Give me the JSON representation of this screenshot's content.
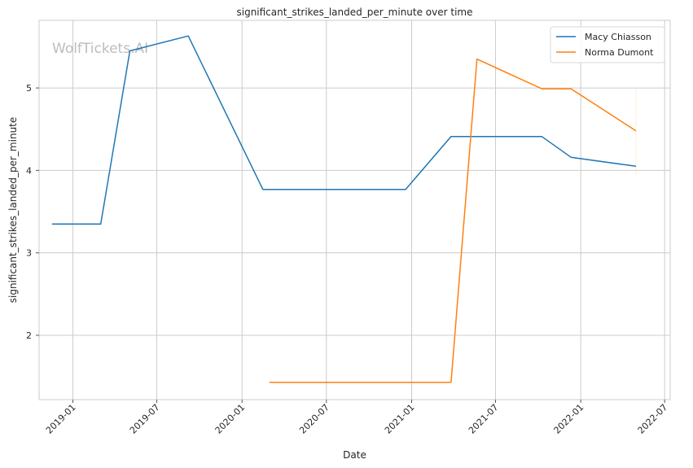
{
  "watermark": "WolfTickets.AI",
  "chart_data": {
    "type": "line",
    "title": "significant_strikes_landed_per_minute over time",
    "xlabel": "Date",
    "ylabel": "significant_strikes_landed_per_minute",
    "x_ticks": [
      "2019-01",
      "2019-07",
      "2020-01",
      "2020-07",
      "2021-01",
      "2021-07",
      "2022-01",
      "2022-07"
    ],
    "y_ticks": [
      2,
      3,
      4,
      5
    ],
    "ylim": [
      1.22,
      5.82
    ],
    "xlim": [
      "2018-10-20",
      "2022-07-13"
    ],
    "grid": true,
    "legend_position": "top-right",
    "series": [
      {
        "name": "Macy Chiasson",
        "color": "#1f77b4",
        "points": [
          {
            "x": "2018-11-17",
            "y": 3.35
          },
          {
            "x": "2019-03-02",
            "y": 3.35
          },
          {
            "x": "2019-05-04",
            "y": 5.45
          },
          {
            "x": "2019-09-07",
            "y": 5.63
          },
          {
            "x": "2020-02-15",
            "y": 3.77
          },
          {
            "x": "2020-12-19",
            "y": 3.77
          },
          {
            "x": "2021-03-27",
            "y": 4.41
          },
          {
            "x": "2021-10-09",
            "y": 4.41
          },
          {
            "x": "2021-12-11",
            "y": 4.16
          },
          {
            "x": "2022-04-30",
            "y": 4.05
          }
        ]
      },
      {
        "name": "Norma Dumont",
        "color": "#ff7f0e",
        "points": [
          {
            "x": "2020-02-29",
            "y": 1.43
          },
          {
            "x": "2021-03-27",
            "y": 1.43
          },
          {
            "x": "2021-05-22",
            "y": 5.35
          },
          {
            "x": "2021-10-09",
            "y": 4.99
          },
          {
            "x": "2021-12-11",
            "y": 4.99
          },
          {
            "x": "2022-04-30",
            "y": 4.48
          }
        ]
      }
    ]
  }
}
